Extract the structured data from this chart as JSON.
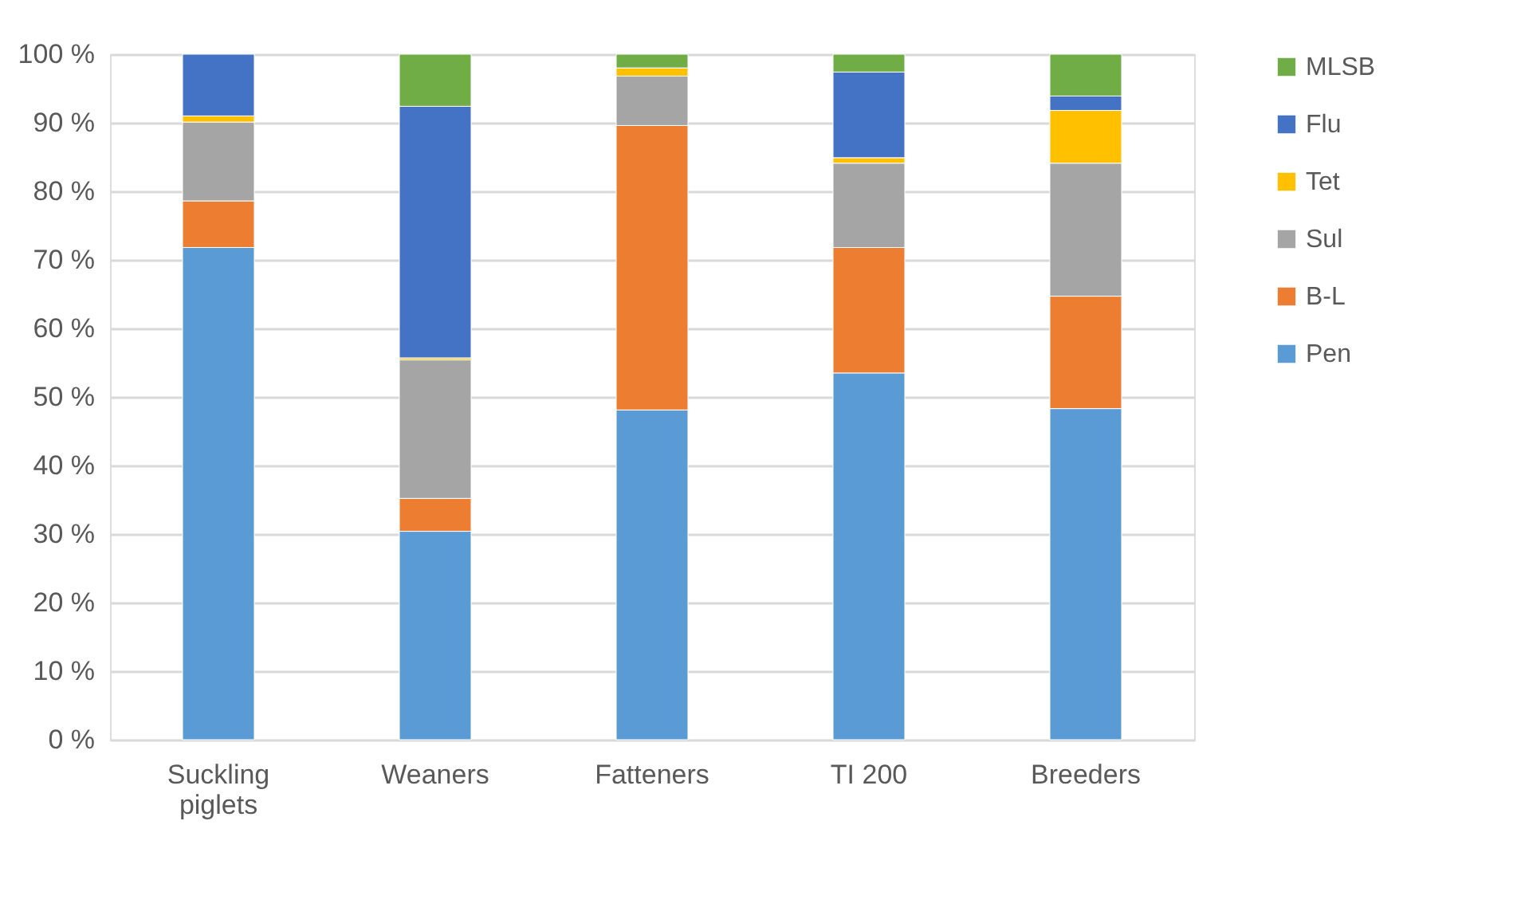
{
  "chart_data": {
    "type": "bar",
    "stacked": true,
    "categories": [
      "Suckling\npiglets",
      "Weaners",
      "Fatteners",
      "TI 200",
      "Breeders"
    ],
    "series": [
      {
        "name": "Pen",
        "color": "#5b9bd5",
        "values": [
          71.8,
          30.4,
          48.1,
          53.5,
          48.3
        ]
      },
      {
        "name": "B-L",
        "color": "#ed7d31",
        "values": [
          6.8,
          4.8,
          41.5,
          18.3,
          16.4
        ]
      },
      {
        "name": "Sul",
        "color": "#a5a5a5",
        "values": [
          11.5,
          20.2,
          7.2,
          12.3,
          19.4
        ]
      },
      {
        "name": "Tet",
        "color": "#ffc000",
        "values": [
          0.9,
          0.3,
          1.2,
          0.8,
          7.7
        ]
      },
      {
        "name": "Flu",
        "color": "#4472c4",
        "values": [
          9.0,
          36.7,
          null,
          12.5,
          2.1
        ]
      },
      {
        "name": "MLSB",
        "color": "#70ad47",
        "values": [
          null,
          7.6,
          2.0,
          2.6,
          6.1
        ]
      }
    ],
    "ylim": [
      0,
      100
    ],
    "yticks": [
      {
        "value": 0,
        "label": "0 %"
      },
      {
        "value": 10,
        "label": "10 %"
      },
      {
        "value": 20,
        "label": "20 %"
      },
      {
        "value": 30,
        "label": "30 %"
      },
      {
        "value": 40,
        "label": "40 %"
      },
      {
        "value": 50,
        "label": "50 %"
      },
      {
        "value": 60,
        "label": "60 %"
      },
      {
        "value": 70,
        "label": "70 %"
      },
      {
        "value": 80,
        "label": "80 %"
      },
      {
        "value": 90,
        "label": "90 %"
      },
      {
        "value": 100,
        "label": "100 %"
      }
    ],
    "grid": "y",
    "legend": "right"
  }
}
